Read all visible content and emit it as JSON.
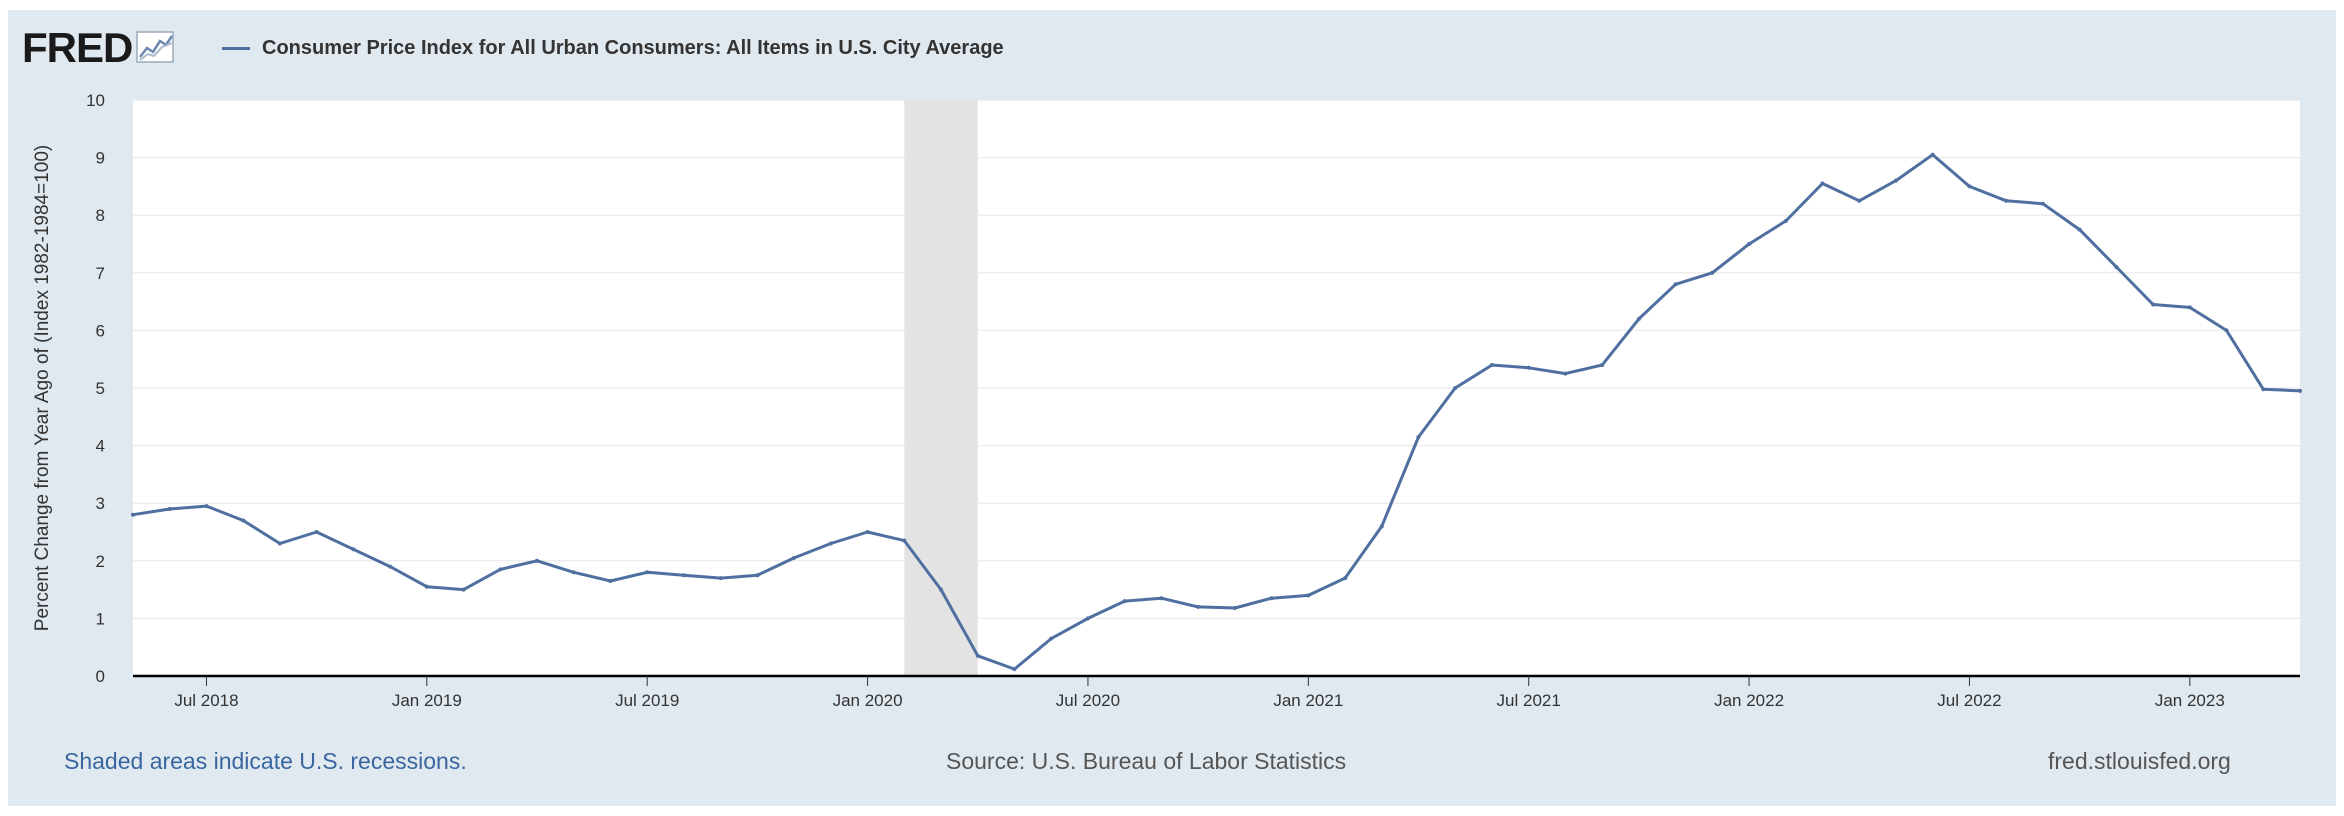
{
  "header": {
    "logo_text": "FRED",
    "series_title": "Consumer Price Index for All Urban Consumers: All Items in U.S. City Average"
  },
  "footer": {
    "recession_note": "Shaded areas indicate U.S. recessions.",
    "source": "Source: U.S. Bureau of Labor Statistics",
    "site": "fred.stlouisfed.org"
  },
  "colors": {
    "line": "#4e6f9f",
    "recession": "#e3e3e3",
    "frame": "#e1e9f0"
  },
  "icons": [
    "fred-graph-icon"
  ],
  "chart_data": {
    "type": "line",
    "title": "Consumer Price Index for All Urban Consumers: All Items in U.S. City Average",
    "xlabel": "",
    "ylabel": "Percent Change from Year Ago of (Index 1982-1984=100)",
    "ylim": [
      0,
      10
    ],
    "yticks": [
      0,
      1,
      2,
      3,
      4,
      5,
      6,
      7,
      8,
      9,
      10
    ],
    "xlim": [
      "2018-05-01",
      "2023-04-01"
    ],
    "xticks": [
      {
        "date": "2018-07-01",
        "label": "Jul 2018"
      },
      {
        "date": "2019-01-01",
        "label": "Jan 2019"
      },
      {
        "date": "2019-07-01",
        "label": "Jul 2019"
      },
      {
        "date": "2020-01-01",
        "label": "Jan 2020"
      },
      {
        "date": "2020-07-01",
        "label": "Jul 2020"
      },
      {
        "date": "2021-01-01",
        "label": "Jan 2021"
      },
      {
        "date": "2021-07-01",
        "label": "Jul 2021"
      },
      {
        "date": "2022-01-01",
        "label": "Jan 2022"
      },
      {
        "date": "2022-07-01",
        "label": "Jul 2022"
      },
      {
        "date": "2023-01-01",
        "label": "Jan 2023"
      }
    ],
    "grid": true,
    "recessions": [
      {
        "start": "2020-02-01",
        "end": "2020-04-01"
      }
    ],
    "series": [
      {
        "name": "Consumer Price Index for All Urban Consumers: All Items in U.S. City Average",
        "x": [
          "2018-05-01",
          "2018-06-01",
          "2018-07-01",
          "2018-08-01",
          "2018-09-01",
          "2018-10-01",
          "2018-11-01",
          "2018-12-01",
          "2019-01-01",
          "2019-02-01",
          "2019-03-01",
          "2019-04-01",
          "2019-05-01",
          "2019-06-01",
          "2019-07-01",
          "2019-08-01",
          "2019-09-01",
          "2019-10-01",
          "2019-11-01",
          "2019-12-01",
          "2020-01-01",
          "2020-02-01",
          "2020-03-01",
          "2020-04-01",
          "2020-05-01",
          "2020-06-01",
          "2020-07-01",
          "2020-08-01",
          "2020-09-01",
          "2020-10-01",
          "2020-11-01",
          "2020-12-01",
          "2021-01-01",
          "2021-02-01",
          "2021-03-01",
          "2021-04-01",
          "2021-05-01",
          "2021-06-01",
          "2021-07-01",
          "2021-08-01",
          "2021-09-01",
          "2021-10-01",
          "2021-11-01",
          "2021-12-01",
          "2022-01-01",
          "2022-02-01",
          "2022-03-01",
          "2022-04-01",
          "2022-05-01",
          "2022-06-01",
          "2022-07-01",
          "2022-08-01",
          "2022-09-01",
          "2022-10-01",
          "2022-11-01",
          "2022-12-01",
          "2023-01-01",
          "2023-02-01",
          "2023-03-01",
          "2023-04-01"
        ],
        "values": [
          2.8,
          2.9,
          2.95,
          2.7,
          2.3,
          2.5,
          2.2,
          1.9,
          1.55,
          1.5,
          1.85,
          2.0,
          1.8,
          1.65,
          1.8,
          1.75,
          1.7,
          1.75,
          2.05,
          2.3,
          2.5,
          2.35,
          1.5,
          0.35,
          0.12,
          0.65,
          1.0,
          1.3,
          1.35,
          1.2,
          1.18,
          1.35,
          1.4,
          1.7,
          2.6,
          4.15,
          5.0,
          5.4,
          5.35,
          5.25,
          5.4,
          6.2,
          6.8,
          7.0,
          7.5,
          7.9,
          8.55,
          8.25,
          8.6,
          9.05,
          8.5,
          8.25,
          8.2,
          7.75,
          7.1,
          6.45,
          6.4,
          6.0,
          4.98,
          4.95
        ]
      }
    ]
  }
}
